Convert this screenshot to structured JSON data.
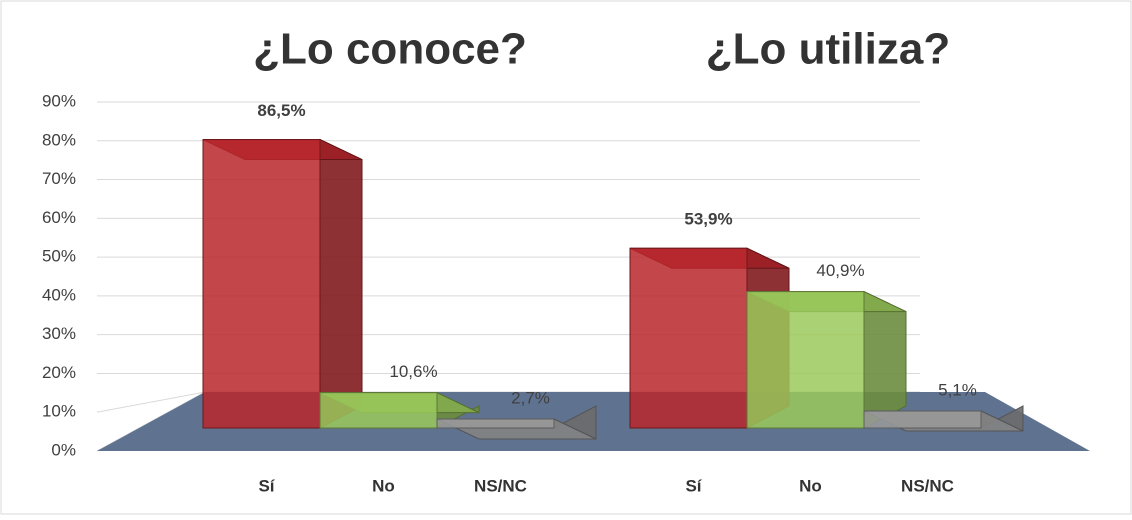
{
  "chart_data": [
    {
      "type": "bar3d",
      "title": "¿Lo conoce?",
      "categories": [
        "Sí",
        "No",
        "NS/NC"
      ],
      "values": [
        86.5,
        10.6,
        2.7
      ],
      "value_labels": [
        "86,5%",
        "10,6%",
        "2,7%"
      ],
      "colors": [
        "#b8262b",
        "#9bc95a",
        "#9a9a9a"
      ],
      "ylim": [
        0,
        90
      ],
      "yticks": [
        {
          "value": 0,
          "label": "0%"
        },
        {
          "value": 10,
          "label": "10%"
        },
        {
          "value": 20,
          "label": "20%"
        },
        {
          "value": 30,
          "label": "30%"
        },
        {
          "value": 40,
          "label": "40%"
        },
        {
          "value": 50,
          "label": "50%"
        },
        {
          "value": 60,
          "label": "60%"
        },
        {
          "value": 70,
          "label": "70%"
        },
        {
          "value": 80,
          "label": "80%"
        },
        {
          "value": 90,
          "label": "90%"
        }
      ],
      "grid": true
    },
    {
      "type": "bar3d",
      "title": "¿Lo utiliza?",
      "categories": [
        "Sí",
        "No",
        "NS/NC"
      ],
      "values": [
        53.9,
        40.9,
        5.1
      ],
      "value_labels": [
        "53,9%",
        "40,9%",
        "5,1%"
      ],
      "colors": [
        "#b8262b",
        "#9bc95a",
        "#9a9a9a"
      ],
      "ylim": [
        0,
        90
      ]
    }
  ]
}
